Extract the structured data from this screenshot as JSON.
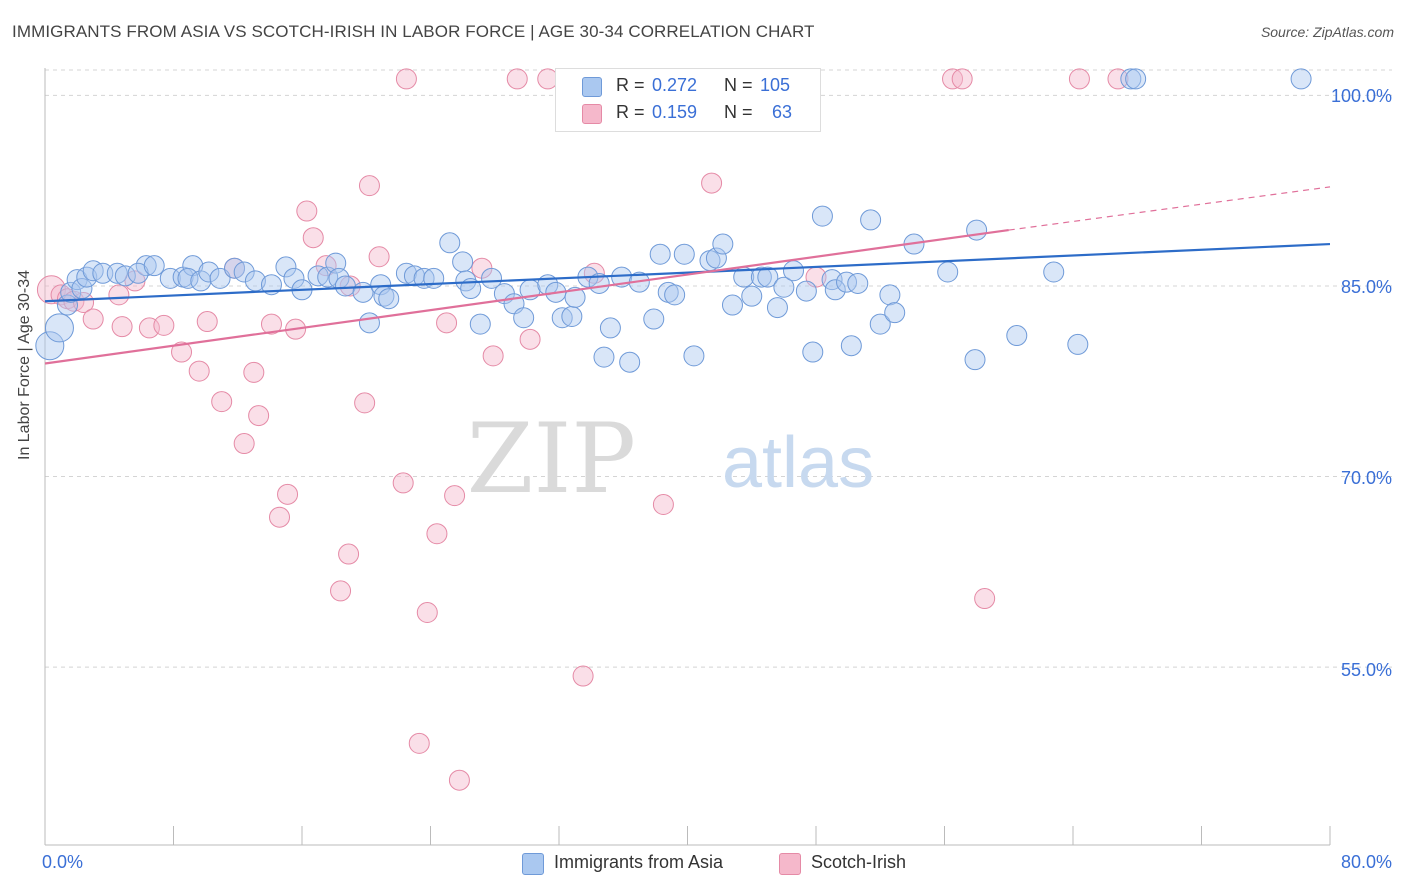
{
  "header": {
    "title": "IMMIGRANTS FROM ASIA VS SCOTCH-IRISH IN LABOR FORCE | AGE 30-34 CORRELATION CHART",
    "source_prefix": "Source: ",
    "source_name": "ZipAtlas.com"
  },
  "watermark": {
    "zip": "ZIP",
    "atlas": "atlas"
  },
  "legend": {
    "r_label": "R =",
    "n_label": "N =",
    "rows": [
      {
        "r": "0.272",
        "n": "105"
      },
      {
        "r": "0.159",
        "n": "63"
      }
    ]
  },
  "colors": {
    "blue_fill": "#aac8f0",
    "blue_stroke": "#6f9ad8",
    "blue_line": "#2d6cc8",
    "pink_fill": "#f5b8cb",
    "pink_stroke": "#e58aa6",
    "pink_line": "#e0709a",
    "tick_text": "#3a6fd6"
  },
  "chart_data": {
    "type": "scatter",
    "title": "IMMIGRANTS FROM ASIA VS SCOTCH-IRISH IN LABOR FORCE | AGE 30-34 CORRELATION CHART",
    "xlabel": "",
    "ylabel": "In Labor Force | Age 30-34",
    "xlim": [
      0,
      80
    ],
    "ylim": [
      41,
      102
    ],
    "x_tick_labels": [
      "0.0%",
      "80.0%"
    ],
    "y_ticks": [
      55,
      70,
      85,
      100
    ],
    "y_tick_labels": [
      "55.0%",
      "70.0%",
      "85.0%",
      "100.0%"
    ],
    "grid": "horizontal dashed",
    "legend_position": "top-center",
    "series": [
      {
        "name": "Immigrants from Asia",
        "r": 0.272,
        "n": 105,
        "trend": {
          "x": [
            0,
            80
          ],
          "y": [
            83.8,
            88.3
          ]
        },
        "points": [
          [
            0.3,
            80.3,
            14
          ],
          [
            0.9,
            81.7,
            14
          ],
          [
            1.4,
            83.5,
            10
          ],
          [
            1.6,
            84.5,
            10
          ],
          [
            2.0,
            85.5,
            10
          ],
          [
            2.3,
            84.8,
            10
          ],
          [
            2.6,
            85.7,
            10
          ],
          [
            3.0,
            86.2,
            10
          ],
          [
            3.6,
            86.0,
            10
          ],
          [
            4.5,
            86.0,
            10
          ],
          [
            5.0,
            85.8,
            10
          ],
          [
            6.3,
            86.6,
            10
          ],
          [
            5.8,
            86.0,
            10
          ],
          [
            6.8,
            86.6,
            10
          ],
          [
            7.8,
            85.6,
            10
          ],
          [
            8.6,
            85.7,
            10
          ],
          [
            9.2,
            86.6,
            10
          ],
          [
            8.9,
            85.6,
            10
          ],
          [
            9.7,
            85.4,
            10
          ],
          [
            10.2,
            86.1,
            10
          ],
          [
            10.9,
            85.6,
            10
          ],
          [
            11.8,
            86.4,
            10
          ],
          [
            12.4,
            86.1,
            10
          ],
          [
            13.1,
            85.4,
            10
          ],
          [
            14.1,
            85.1,
            10
          ],
          [
            15.0,
            86.5,
            10
          ],
          [
            15.5,
            85.6,
            10
          ],
          [
            16.0,
            84.7,
            10
          ],
          [
            17.0,
            85.8,
            10
          ],
          [
            17.6,
            85.7,
            10
          ],
          [
            18.1,
            86.8,
            10
          ],
          [
            18.3,
            85.6,
            10
          ],
          [
            18.7,
            85.0,
            10
          ],
          [
            19.8,
            84.5,
            10
          ],
          [
            20.2,
            82.1,
            10
          ],
          [
            20.9,
            85.1,
            10
          ],
          [
            21.1,
            84.2,
            10
          ],
          [
            21.4,
            84.0,
            10
          ],
          [
            22.5,
            86.0,
            10
          ],
          [
            23.0,
            85.8,
            10
          ],
          [
            23.6,
            85.6,
            10
          ],
          [
            24.2,
            85.6,
            10
          ],
          [
            25.2,
            88.4,
            10
          ],
          [
            26.0,
            86.9,
            10
          ],
          [
            26.2,
            85.4,
            10
          ],
          [
            26.5,
            84.8,
            10
          ],
          [
            27.1,
            82.0,
            10
          ],
          [
            27.8,
            85.6,
            10
          ],
          [
            28.6,
            84.4,
            10
          ],
          [
            29.2,
            83.6,
            10
          ],
          [
            29.8,
            82.5,
            10
          ],
          [
            30.2,
            84.7,
            10
          ],
          [
            31.3,
            85.1,
            10
          ],
          [
            31.8,
            84.5,
            10
          ],
          [
            32.2,
            82.5,
            10
          ],
          [
            32.8,
            82.6,
            10
          ],
          [
            33.0,
            84.1,
            10
          ],
          [
            33.8,
            85.7,
            10
          ],
          [
            34.5,
            85.2,
            10
          ],
          [
            34.8,
            79.4,
            10
          ],
          [
            35.2,
            81.7,
            10
          ],
          [
            35.9,
            85.7,
            10
          ],
          [
            36.4,
            79.0,
            10
          ],
          [
            37.0,
            85.3,
            10
          ],
          [
            37.9,
            82.4,
            10
          ],
          [
            38.3,
            87.5,
            10
          ],
          [
            38.8,
            84.5,
            10
          ],
          [
            39.2,
            84.3,
            10
          ],
          [
            39.8,
            87.5,
            10
          ],
          [
            40.4,
            79.5,
            10
          ],
          [
            41.4,
            87.0,
            10
          ],
          [
            41.8,
            87.2,
            10
          ],
          [
            42.2,
            88.3,
            10
          ],
          [
            42.8,
            83.5,
            10
          ],
          [
            43.5,
            85.7,
            10
          ],
          [
            44.0,
            84.2,
            10
          ],
          [
            44.6,
            85.7,
            10
          ],
          [
            45.0,
            85.7,
            10
          ],
          [
            45.6,
            83.3,
            10
          ],
          [
            46.0,
            84.9,
            10
          ],
          [
            46.6,
            86.2,
            10
          ],
          [
            47.4,
            84.6,
            10
          ],
          [
            47.8,
            79.8,
            10
          ],
          [
            48.4,
            90.5,
            10
          ],
          [
            49.0,
            85.5,
            10
          ],
          [
            49.2,
            84.7,
            10
          ],
          [
            49.9,
            85.3,
            10
          ],
          [
            50.2,
            80.3,
            10
          ],
          [
            50.6,
            85.2,
            10
          ],
          [
            51.4,
            90.2,
            10
          ],
          [
            52.0,
            82.0,
            10
          ],
          [
            52.6,
            84.3,
            10
          ],
          [
            52.9,
            82.9,
            10
          ],
          [
            54.1,
            88.3,
            10
          ],
          [
            56.2,
            86.1,
            10
          ],
          [
            57.9,
            79.2,
            10
          ],
          [
            58.0,
            89.4,
            10
          ],
          [
            60.5,
            81.1,
            10
          ],
          [
            62.8,
            86.1,
            10
          ],
          [
            64.3,
            80.4,
            10
          ],
          [
            67.6,
            101.3,
            10
          ],
          [
            67.9,
            101.3,
            10
          ],
          [
            78.2,
            101.3,
            10
          ]
        ]
      },
      {
        "name": "Scotch-Irish",
        "r": 0.159,
        "n": 63,
        "trend": {
          "x": [
            0,
            60
          ],
          "y": [
            78.9,
            89.4
          ]
        },
        "trend_dashed": {
          "x": [
            60,
            80
          ],
          "y": [
            89.4,
            92.8
          ]
        },
        "points": [
          [
            0.4,
            84.7,
            14
          ],
          [
            1.0,
            84.3,
            10
          ],
          [
            1.4,
            84.0,
            10
          ],
          [
            1.8,
            83.8,
            10
          ],
          [
            2.4,
            83.7,
            10
          ],
          [
            3.0,
            82.4,
            10
          ],
          [
            4.6,
            84.3,
            10
          ],
          [
            4.8,
            81.8,
            10
          ],
          [
            5.6,
            85.4,
            10
          ],
          [
            6.5,
            81.7,
            10
          ],
          [
            7.4,
            81.9,
            10
          ],
          [
            8.5,
            79.8,
            10
          ],
          [
            9.6,
            78.3,
            10
          ],
          [
            10.1,
            82.2,
            10
          ],
          [
            11.0,
            75.9,
            10
          ],
          [
            11.8,
            86.4,
            10
          ],
          [
            12.4,
            72.6,
            10
          ],
          [
            13.0,
            78.2,
            10
          ],
          [
            13.3,
            74.8,
            10
          ],
          [
            14.1,
            82.0,
            10
          ],
          [
            14.6,
            66.8,
            10
          ],
          [
            15.1,
            68.6,
            10
          ],
          [
            15.6,
            81.6,
            10
          ],
          [
            16.3,
            90.9,
            10
          ],
          [
            16.7,
            88.8,
            10
          ],
          [
            17.5,
            86.6,
            10
          ],
          [
            18.9,
            63.9,
            10
          ],
          [
            18.4,
            61.0,
            10
          ],
          [
            19.0,
            85.0,
            10
          ],
          [
            19.9,
            75.8,
            10
          ],
          [
            20.2,
            92.9,
            10
          ],
          [
            20.8,
            87.3,
            10
          ],
          [
            22.3,
            69.5,
            10
          ],
          [
            22.5,
            101.3,
            10
          ],
          [
            23.3,
            49.0,
            10
          ],
          [
            23.8,
            59.3,
            10
          ],
          [
            24.4,
            65.5,
            10
          ],
          [
            25.0,
            82.1,
            10
          ],
          [
            25.5,
            68.5,
            10
          ],
          [
            25.8,
            46.1,
            10
          ],
          [
            27.2,
            86.4,
            10
          ],
          [
            27.9,
            79.5,
            10
          ],
          [
            29.4,
            101.3,
            10
          ],
          [
            30.2,
            80.8,
            10
          ],
          [
            31.3,
            101.3,
            10
          ],
          [
            33.1,
            101.3,
            10
          ],
          [
            33.5,
            54.3,
            10
          ],
          [
            34.2,
            86.0,
            10
          ],
          [
            35.2,
            101.3,
            10
          ],
          [
            36.0,
            101.3,
            10
          ],
          [
            37.0,
            101.3,
            10
          ],
          [
            39.1,
            101.3,
            10
          ],
          [
            39.4,
            101.3,
            10
          ],
          [
            41.5,
            93.1,
            10
          ],
          [
            43.2,
            101.3,
            10
          ],
          [
            44.5,
            101.3,
            10
          ],
          [
            48.0,
            85.7,
            10
          ],
          [
            56.5,
            101.3,
            10
          ],
          [
            57.1,
            101.3,
            10
          ],
          [
            58.5,
            60.4,
            10
          ],
          [
            64.4,
            101.3,
            10
          ],
          [
            66.8,
            101.3,
            10
          ],
          [
            38.5,
            67.8,
            10
          ]
        ]
      }
    ]
  }
}
